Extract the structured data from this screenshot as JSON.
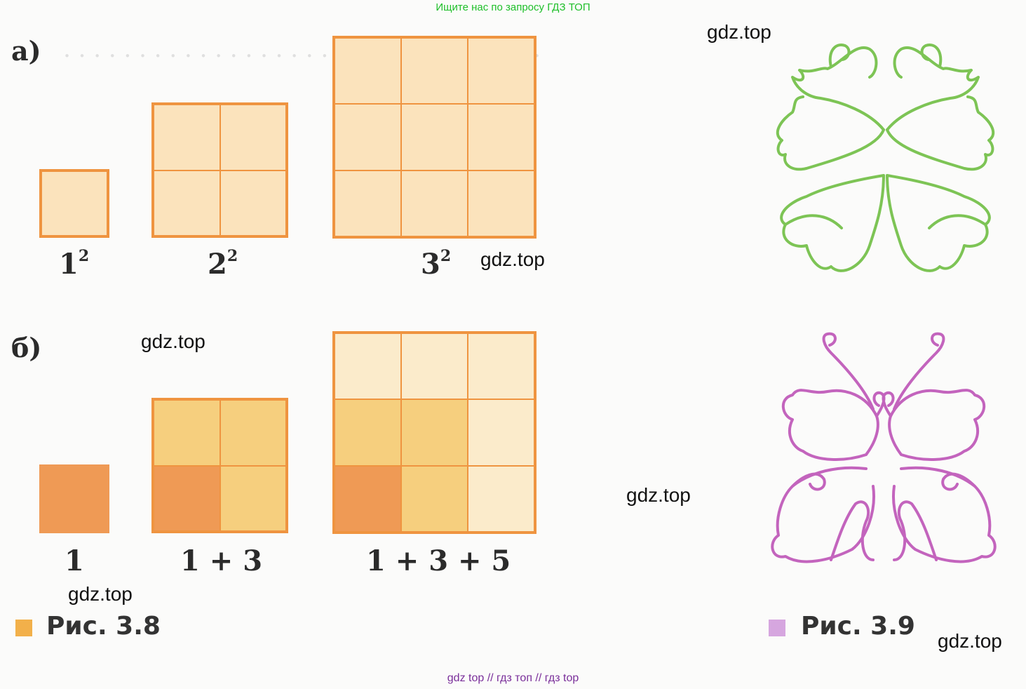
{
  "banner_top": "Ищите нас по запросу ГДЗ ТОП",
  "banner_bottom": "gdz top  //  гдз топ  //  гдз top",
  "watermark": "gdz.top",
  "figure_a": {
    "label": "а)",
    "squares": [
      {
        "base": "1",
        "exp": "2",
        "n": 1
      },
      {
        "base": "2",
        "exp": "2",
        "n": 2
      },
      {
        "base": "3",
        "exp": "2",
        "n": 3
      }
    ]
  },
  "figure_b": {
    "label": "б)",
    "squares": [
      {
        "label": "1",
        "n": 1
      },
      {
        "label": "1 + 3",
        "n": 2
      },
      {
        "label": "1 + 3 + 5",
        "n": 3
      }
    ]
  },
  "caption_38": {
    "text": "Рис. 3.8",
    "color": "#f2b04a"
  },
  "caption_39": {
    "text": "Рис. 3.9",
    "color": "#d6a6df"
  },
  "colors": {
    "square_border": "#ef9440",
    "square_fill": "#fbe3bc",
    "layer1": "#ef9a55",
    "layer2": "#f6cf7e",
    "layer3": "#fbebcb",
    "butterfly_green": "#7dc455",
    "butterfly_purple": "#c364bd"
  },
  "icons": [
    "green-butterfly-outline-icon",
    "purple-butterfly-outline-icon"
  ]
}
